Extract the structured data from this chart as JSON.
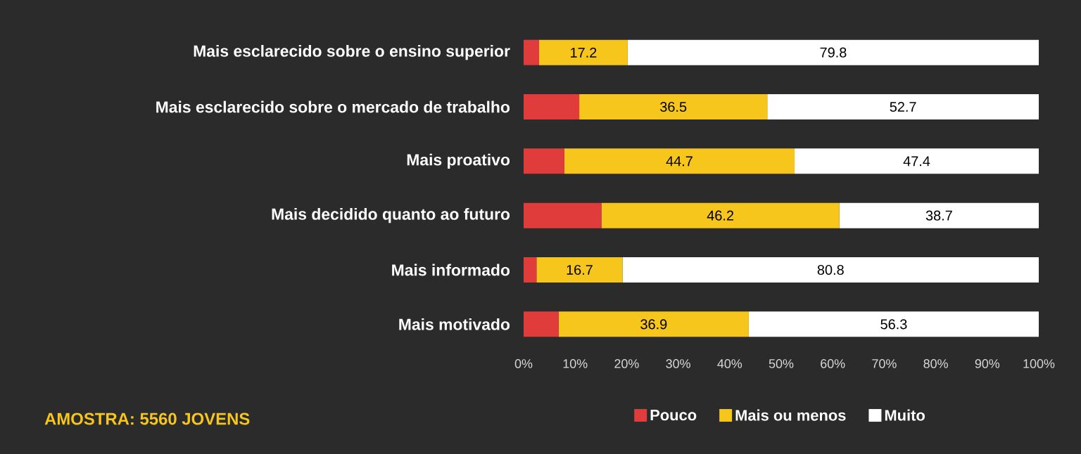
{
  "chart_data": {
    "type": "bar",
    "orientation": "horizontal",
    "stacked": true,
    "categories": [
      "Mais esclarecido sobre o ensino superior",
      "Mais esclarecido sobre o mercado de trabalho",
      "Mais proativo",
      "Mais decidido quanto ao futuro",
      "Mais informado",
      "Mais motivado"
    ],
    "series": [
      {
        "name": "Pouco",
        "color": "#e03c3c",
        "values": [
          3.0,
          10.8,
          7.9,
          15.1,
          2.5,
          6.8
        ],
        "value_labels": [
          null,
          null,
          null,
          null,
          null,
          null
        ]
      },
      {
        "name": "Mais ou menos",
        "color": "#f7c61c",
        "values": [
          17.2,
          36.5,
          44.7,
          46.2,
          16.7,
          36.9
        ],
        "value_labels": [
          "17.2",
          "36.5",
          "44.7",
          "46.2",
          "16.7",
          "36.9"
        ]
      },
      {
        "name": "Muito",
        "color": "#ffffff",
        "values": [
          79.8,
          52.7,
          47.4,
          38.7,
          80.8,
          56.3
        ],
        "value_labels": [
          "79.8",
          "52.7",
          "47.4",
          "38.7",
          "80.8",
          "56.3"
        ]
      }
    ],
    "xlim": [
      0,
      100
    ],
    "xticks": [
      {
        "value": 0,
        "label": "0%"
      },
      {
        "value": 10,
        "label": "10%"
      },
      {
        "value": 20,
        "label": "20%"
      },
      {
        "value": 30,
        "label": "30%"
      },
      {
        "value": 40,
        "label": "40%"
      },
      {
        "value": 50,
        "label": "50%"
      },
      {
        "value": 60,
        "label": "60%"
      },
      {
        "value": 70,
        "label": "70%"
      },
      {
        "value": 80,
        "label": "80%"
      },
      {
        "value": 90,
        "label": "90%"
      },
      {
        "value": 100,
        "label": "100%"
      }
    ],
    "legend": "bottom",
    "grid": false,
    "annotations": [
      "AMOSTRA: 5560 JOVENS"
    ]
  }
}
